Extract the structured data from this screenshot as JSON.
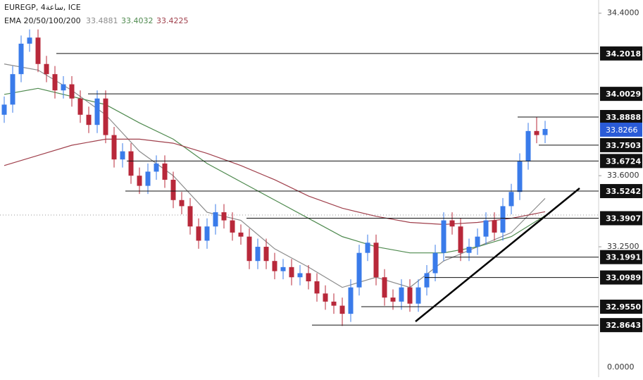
{
  "chart_data": {
    "type": "candlestick",
    "title": "EUREGP, 4ساعة, ICE",
    "indicator_title": "EMA 20/50/100/200",
    "up_color": "#3a7bea",
    "down_color": "#b8283a",
    "ylim": [
      32.608,
      34.465
    ],
    "yticks": [
      {
        "value": 34.4,
        "label": "34.4000"
      },
      {
        "value": 33.6,
        "label": "33.6000"
      },
      {
        "value": 33.25,
        "label": "33.2500"
      }
    ],
    "bottom_label": "0.0000",
    "open": [
      33.9,
      33.95,
      34.1,
      34.25,
      34.28,
      34.15,
      34.1,
      34.02,
      34.05,
      33.98,
      33.9,
      33.85,
      33.98,
      33.8,
      33.68,
      33.72,
      33.6,
      33.55,
      33.62,
      33.66,
      33.58,
      33.48,
      33.45,
      33.35,
      33.28,
      33.35,
      33.42,
      33.38,
      33.32,
      33.3,
      33.18,
      33.25,
      33.18,
      33.13,
      33.15,
      33.1,
      33.12,
      33.08,
      33.02,
      32.98,
      32.96,
      32.92,
      33.05,
      33.22,
      33.27,
      33.1,
      33.0,
      32.98,
      33.05,
      32.97,
      33.05,
      33.12,
      33.22,
      33.38,
      33.35,
      33.22,
      33.25,
      33.3,
      33.38,
      33.32,
      33.45,
      33.52,
      33.67,
      33.82,
      33.8
    ],
    "high": [
      33.99,
      34.14,
      34.29,
      34.32,
      34.32,
      34.19,
      34.14,
      34.09,
      34.09,
      34.02,
      33.94,
      34.02,
      34.02,
      33.84,
      33.76,
      33.76,
      33.64,
      33.66,
      33.7,
      33.7,
      33.62,
      33.52,
      33.49,
      33.39,
      33.39,
      33.46,
      33.46,
      33.42,
      33.36,
      33.34,
      33.29,
      33.29,
      33.22,
      33.19,
      33.19,
      33.16,
      33.16,
      33.12,
      33.06,
      33.02,
      33.0,
      33.09,
      33.26,
      33.31,
      33.31,
      33.14,
      33.04,
      33.09,
      33.09,
      33.09,
      33.16,
      33.26,
      33.42,
      33.42,
      33.39,
      33.29,
      33.34,
      33.42,
      33.42,
      33.49,
      33.56,
      33.71,
      33.86,
      33.89,
      33.87
    ],
    "low": [
      33.86,
      33.91,
      34.06,
      34.21,
      34.11,
      34.06,
      33.98,
      33.98,
      33.94,
      33.86,
      33.81,
      33.81,
      33.76,
      33.64,
      33.64,
      33.56,
      33.51,
      33.51,
      33.58,
      33.54,
      33.44,
      33.41,
      33.31,
      33.24,
      33.24,
      33.31,
      33.34,
      33.28,
      33.26,
      33.14,
      33.14,
      33.14,
      33.09,
      33.09,
      33.06,
      33.06,
      33.04,
      32.98,
      32.94,
      32.92,
      32.86,
      32.88,
      33.01,
      33.18,
      33.06,
      32.96,
      32.94,
      32.94,
      32.93,
      32.93,
      33.01,
      33.08,
      33.18,
      33.31,
      33.18,
      33.18,
      33.21,
      33.26,
      33.28,
      33.28,
      33.41,
      33.48,
      33.63,
      33.76,
      33.76
    ],
    "close": [
      33.95,
      34.1,
      34.25,
      34.28,
      34.15,
      34.1,
      34.02,
      34.05,
      33.98,
      33.9,
      33.85,
      33.98,
      33.8,
      33.68,
      33.72,
      33.6,
      33.55,
      33.62,
      33.66,
      33.58,
      33.48,
      33.45,
      33.35,
      33.28,
      33.35,
      33.42,
      33.38,
      33.32,
      33.3,
      33.18,
      33.25,
      33.18,
      33.13,
      33.15,
      33.1,
      33.12,
      33.08,
      33.02,
      32.98,
      32.96,
      32.92,
      33.05,
      33.22,
      33.27,
      33.1,
      33.0,
      32.98,
      33.05,
      32.97,
      33.05,
      33.12,
      33.22,
      33.38,
      33.35,
      33.22,
      33.25,
      33.3,
      33.38,
      33.32,
      33.45,
      33.52,
      33.67,
      33.82,
      33.8,
      33.83
    ],
    "ema_x": [
      0,
      4,
      8,
      12,
      16,
      20,
      24,
      28,
      32,
      36,
      40,
      44,
      48,
      52,
      56,
      60,
      64
    ],
    "ema": [
      {
        "color": "#8c8c8c",
        "values": [
          34.15,
          34.12,
          34.02,
          33.9,
          33.72,
          33.6,
          33.42,
          33.38,
          33.24,
          33.15,
          33.05,
          33.1,
          33.05,
          33.18,
          33.25,
          33.32,
          33.4881
        ]
      },
      {
        "color": "#4f8a4f",
        "values": [
          34.0,
          34.03,
          33.99,
          33.95,
          33.86,
          33.78,
          33.66,
          33.57,
          33.48,
          33.39,
          33.3,
          33.25,
          33.22,
          33.22,
          33.25,
          33.3,
          33.4032
        ]
      },
      {
        "color": "#a0404c",
        "values": [
          33.65,
          33.7,
          33.75,
          33.78,
          33.78,
          33.76,
          33.71,
          33.65,
          33.58,
          33.5,
          33.44,
          33.4,
          33.37,
          33.36,
          33.37,
          33.39,
          33.4225
        ]
      }
    ],
    "levels": [
      34.2018,
      34.0029,
      33.8888,
      33.7503,
      33.6724,
      33.5242,
      33.3907,
      33.1991,
      33.0989,
      {
        "value": 32.955,
        "label": "32.9550"
      },
      32.8643
    ],
    "last_price": 33.8266
  }
}
